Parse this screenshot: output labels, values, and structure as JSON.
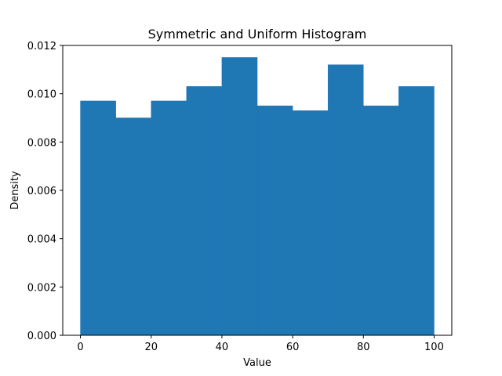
{
  "chart_data": {
    "type": "histogram",
    "title": "Symmetric and Uniform Histogram",
    "xlabel": "Value",
    "ylabel": "Density",
    "bin_edges": [
      0,
      10,
      20,
      30,
      40,
      50,
      60,
      70,
      80,
      90,
      100
    ],
    "values": [
      0.0097,
      0.009,
      0.0097,
      0.0103,
      0.0115,
      0.0095,
      0.0093,
      0.0112,
      0.0095,
      0.0103
    ],
    "xlim": [
      -5,
      105
    ],
    "ylim": [
      0,
      0.012
    ],
    "xticks": [
      0,
      20,
      40,
      60,
      80,
      100
    ],
    "xtick_labels": [
      "0",
      "20",
      "40",
      "60",
      "80",
      "100"
    ],
    "yticks": [
      0,
      0.002,
      0.004,
      0.006,
      0.008,
      0.01,
      0.012
    ],
    "ytick_labels": [
      "0.000",
      "0.002",
      "0.004",
      "0.006",
      "0.008",
      "0.010",
      "0.012"
    ],
    "bar_color": "#1f77b4",
    "grid": false
  }
}
